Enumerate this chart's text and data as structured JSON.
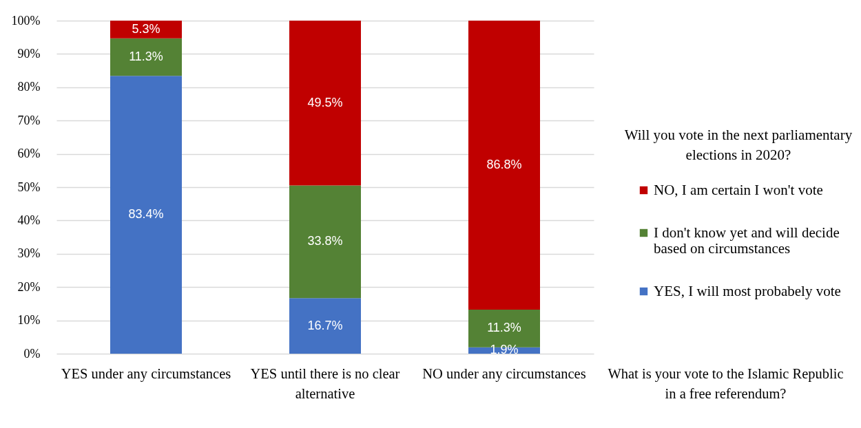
{
  "chart_data": {
    "type": "bar",
    "stacked": true,
    "categories": [
      "YES under any circumstances",
      "YES until there is no clear alternative",
      "NO under any circumstances"
    ],
    "series": [
      {
        "name": "YES, I will most probabely vote",
        "color": "#4472c4",
        "values": [
          83.4,
          16.7,
          1.9
        ],
        "value_labels": [
          "83.4%",
          "16.7%",
          "1.9%"
        ]
      },
      {
        "name": "I don't know yet and will decide based on circumstances",
        "color": "#548235",
        "values": [
          11.3,
          33.8,
          11.3
        ],
        "value_labels": [
          "11.3%",
          "33.8%",
          "11.3%"
        ]
      },
      {
        "name": "NO, I am certain I won't vote",
        "color": "#c00000",
        "values": [
          5.3,
          49.5,
          86.8
        ],
        "value_labels": [
          "5.3%",
          "49.5%",
          "86.8%"
        ]
      }
    ],
    "xlabel": "What is your vote to the Islamic Republic in a free referendum?",
    "legend_title": "Will you vote in the next parliamentary elections in 2020?",
    "ylim": [
      0,
      100
    ],
    "yticks": [
      {
        "value": 0,
        "label": "0%"
      },
      {
        "value": 10,
        "label": "10%"
      },
      {
        "value": 20,
        "label": "20%"
      },
      {
        "value": 30,
        "label": "30%"
      },
      {
        "value": 40,
        "label": "40%"
      },
      {
        "value": 50,
        "label": "50%"
      },
      {
        "value": 60,
        "label": "60%"
      },
      {
        "value": 70,
        "label": "70%"
      },
      {
        "value": 80,
        "label": "80%"
      },
      {
        "value": 90,
        "label": "90%"
      },
      {
        "value": 100,
        "label": "100%"
      }
    ],
    "grid": "y",
    "legend": "right"
  }
}
